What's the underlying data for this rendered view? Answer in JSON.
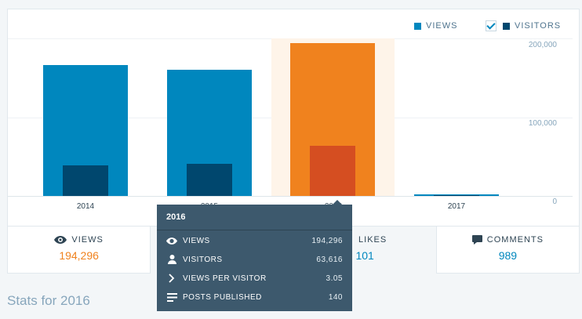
{
  "legend": {
    "views": "VIEWS",
    "visitors": "VISITORS",
    "views_color": "#0087be",
    "visitors_color": "#00476e"
  },
  "chart_data": {
    "type": "bar",
    "categories": [
      "2014",
      "2015",
      "2016",
      "2017"
    ],
    "series": [
      {
        "name": "VIEWS",
        "values": [
          166000,
          160000,
          194296,
          2200
        ]
      },
      {
        "name": "VISITORS",
        "values": [
          39000,
          41000,
          63616,
          700
        ]
      }
    ],
    "y_ticks": [
      "200,000",
      "100,000",
      "0"
    ],
    "ylim": [
      0,
      200000
    ],
    "highlighted": "2016",
    "colors": {
      "views": "#0087be",
      "visitors": "#00476e",
      "views_highlight": "#f0821e",
      "visitors_highlight": "#d54e21",
      "highlight_band": "#fef4e9"
    }
  },
  "stats": {
    "views": {
      "label": "VIEWS",
      "value": "194,296",
      "icon": "eye-icon"
    },
    "likes": {
      "label": "LIKES",
      "value": "101",
      "icon": "star-icon"
    },
    "comments": {
      "label": "COMMENTS",
      "value": "989",
      "icon": "comment-icon"
    }
  },
  "tooltip": {
    "title": "2016",
    "rows": [
      {
        "label": "VIEWS",
        "value": "194,296",
        "icon": "eye-icon"
      },
      {
        "label": "VISITORS",
        "value": "63,616",
        "icon": "person-icon"
      },
      {
        "label": "VIEWS PER VISITOR",
        "value": "3.05",
        "icon": "chevron-right-icon"
      },
      {
        "label": "POSTS PUBLISHED",
        "value": "140",
        "icon": "posts-icon"
      }
    ]
  },
  "page_title": "Stats for 2016"
}
